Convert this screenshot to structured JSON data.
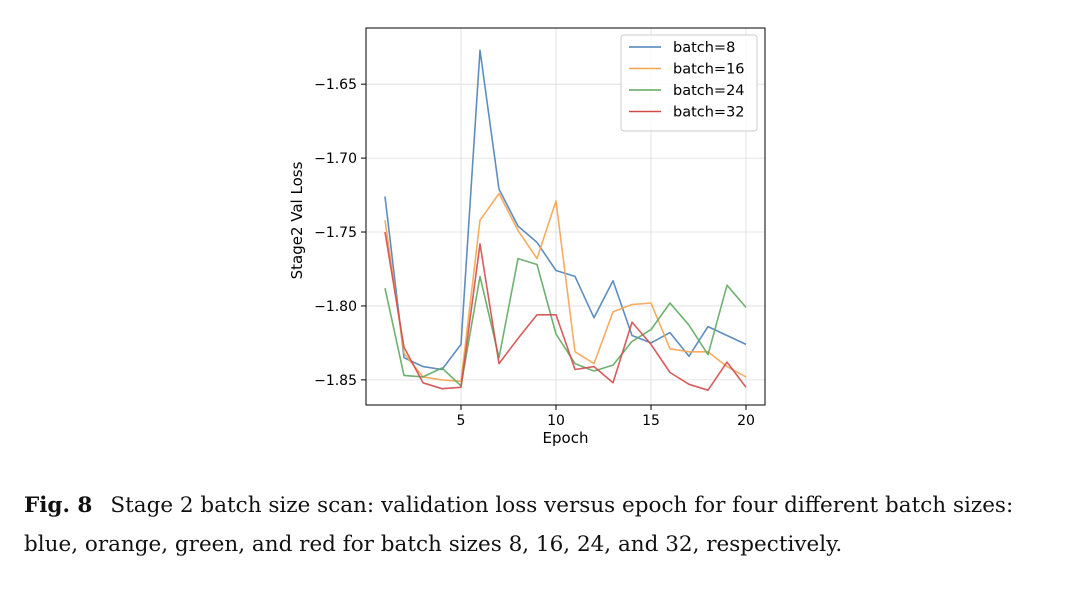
{
  "chart_data": {
    "type": "line",
    "xlabel": "Epoch",
    "ylabel": "Stage2 Val Loss",
    "xlim": [
      0,
      21
    ],
    "ylim": [
      -1.867,
      -1.612
    ],
    "xticks": [
      5,
      10,
      15,
      20
    ],
    "yticks": [
      -1.65,
      -1.7,
      -1.75,
      -1.8,
      -1.85
    ],
    "xtick_labels": [
      "5",
      "10",
      "15",
      "20"
    ],
    "ytick_labels": [
      "−1.65",
      "−1.70",
      "−1.75",
      "−1.80",
      "−1.85"
    ],
    "grid": true,
    "legend_position": "top-right",
    "x": [
      1,
      2,
      3,
      4,
      5,
      6,
      7,
      8,
      9,
      10,
      11,
      12,
      13,
      14,
      15,
      16,
      17,
      18,
      19,
      20
    ],
    "series": [
      {
        "name": "batch=8",
        "color": "#4c82b9",
        "values": [
          -1.726,
          -1.835,
          -1.841,
          -1.843,
          -1.826,
          -1.627,
          -1.721,
          -1.746,
          -1.757,
          -1.776,
          -1.78,
          -1.808,
          -1.783,
          -1.82,
          -1.825,
          -1.818,
          -1.834,
          -1.814,
          -1.82,
          -1.826
        ]
      },
      {
        "name": "batch=16",
        "color": "#f5a450",
        "values": [
          -1.742,
          -1.832,
          -1.848,
          -1.85,
          -1.851,
          -1.742,
          -1.724,
          -1.749,
          -1.768,
          -1.729,
          -1.831,
          -1.839,
          -1.804,
          -1.799,
          -1.798,
          -1.829,
          -1.831,
          -1.831,
          -1.841,
          -1.848
        ]
      },
      {
        "name": "batch=24",
        "color": "#5fa85f",
        "values": [
          -1.788,
          -1.847,
          -1.848,
          -1.842,
          -1.854,
          -1.78,
          -1.835,
          -1.768,
          -1.772,
          -1.819,
          -1.839,
          -1.844,
          -1.84,
          -1.824,
          -1.816,
          -1.798,
          -1.813,
          -1.833,
          -1.786,
          -1.801
        ]
      },
      {
        "name": "batch=32",
        "color": "#d24b4b",
        "values": [
          -1.75,
          -1.828,
          -1.852,
          -1.856,
          -1.855,
          -1.758,
          -1.839,
          -1.822,
          -1.806,
          -1.806,
          -1.843,
          -1.841,
          -1.852,
          -1.811,
          -1.826,
          -1.845,
          -1.853,
          -1.857,
          -1.838,
          -1.855
        ]
      }
    ]
  },
  "caption": {
    "label": "Fig. 8",
    "text": "Stage 2 batch size scan: validation loss versus epoch for four different batch sizes: blue, orange, green, and red for batch sizes 8, 16, 24, and 32, respectively."
  }
}
